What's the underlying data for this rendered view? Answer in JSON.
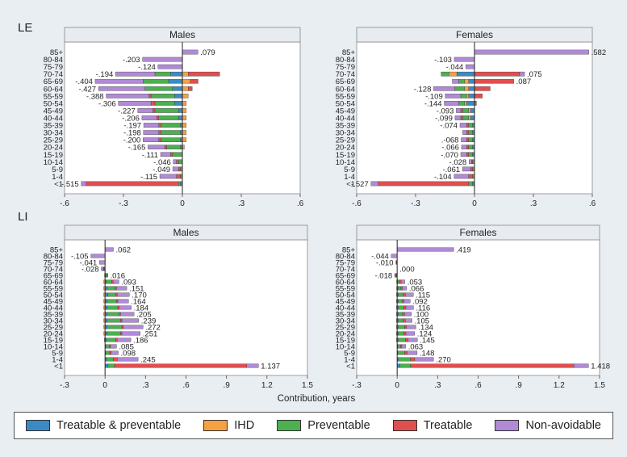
{
  "colors": {
    "treatable_preventable": "#3b8ac4",
    "ihd": "#f5a142",
    "preventable": "#4caf50",
    "treatable": "#e04f4f",
    "non_avoidable": "#b08ad6"
  },
  "panel_labels": {
    "le": "LE",
    "li": "LI"
  },
  "x_axis_title": "Contribution, years",
  "legend": [
    {
      "label": "Treatable & preventable",
      "color": "#3b8ac4"
    },
    {
      "label": "IHD",
      "color": "#f5a142"
    },
    {
      "label": "Preventable",
      "color": "#4caf50"
    },
    {
      "label": "Treatable",
      "color": "#e04f4f"
    },
    {
      "label": "Non-avoidable",
      "color": "#b08ad6"
    }
  ],
  "chart_data": [
    {
      "type": "bar",
      "panel": "LE",
      "title": "Males",
      "categories": [
        "85+",
        "80-84",
        "75-79",
        "70-74",
        "65-69",
        "60-64",
        "55-59",
        "50-54",
        "45-49",
        "40-44",
        "35-39",
        "30-34",
        "25-29",
        "20-24",
        "15-19",
        "10-14",
        "5-9",
        "1-4",
        "<1"
      ],
      "totals": [
        0.079,
        -0.203,
        -0.124,
        -0.194,
        -0.404,
        -0.427,
        -0.388,
        -0.306,
        -0.227,
        -0.206,
        -0.197,
        -0.198,
        -0.2,
        -0.165,
        -0.111,
        -0.046,
        -0.049,
        -0.115,
        -0.515
      ],
      "total_labels": [
        ".079",
        "-.203",
        "-.124",
        "-.194",
        "-.404",
        "-.427",
        "-.388",
        "-.306",
        "-.227",
        "-.206",
        "-.197",
        "-.198",
        "-.200",
        "-.165",
        "-.111",
        "-.046",
        "-.049",
        "-.115",
        "-.515"
      ],
      "series": [
        {
          "name": "Treatable & preventable",
          "values": [
            0,
            0,
            0,
            -0.06,
            -0.07,
            -0.05,
            -0.04,
            -0.04,
            -0.02,
            -0.02,
            -0.01,
            -0.01,
            -0.01,
            -0.01,
            0,
            0,
            0,
            0,
            -0.01
          ]
        },
        {
          "name": "IHD",
          "values": [
            0,
            0,
            0,
            0.03,
            0.04,
            0.03,
            0.03,
            0.02,
            0.02,
            0.02,
            0.02,
            0.02,
            0.02,
            0.01,
            0,
            0,
            0,
            0,
            0
          ]
        },
        {
          "name": "Preventable",
          "values": [
            0,
            0,
            0,
            -0.08,
            -0.13,
            -0.14,
            -0.12,
            -0.1,
            -0.12,
            -0.1,
            -0.1,
            -0.1,
            -0.1,
            -0.07,
            -0.05,
            -0.02,
            -0.01,
            -0.01,
            -0.01
          ]
        },
        {
          "name": "Treatable",
          "values": [
            0,
            0,
            0,
            0.16,
            0.04,
            0.02,
            -0.01,
            -0.02,
            -0.01,
            -0.01,
            -0.01,
            -0.01,
            -0.01,
            -0.01,
            -0.01,
            -0.01,
            -0.01,
            -0.02,
            -0.47
          ]
        },
        {
          "name": "Non-avoidable",
          "values": [
            0.079,
            -0.203,
            -0.124,
            -0.2,
            -0.244,
            -0.237,
            -0.218,
            -0.166,
            -0.077,
            -0.076,
            -0.077,
            -0.078,
            -0.08,
            -0.085,
            -0.051,
            -0.016,
            -0.029,
            -0.085,
            -0.025
          ]
        }
      ],
      "xlim": [
        -0.6,
        0.6
      ],
      "ticks": [
        -0.6,
        -0.3,
        0,
        0.3,
        0.6
      ],
      "tick_labels": [
        "-.6",
        "-.3",
        "0",
        ".3",
        ".6"
      ]
    },
    {
      "type": "bar",
      "panel": "LE",
      "title": "Females",
      "categories": [
        "85+",
        "80-84",
        "75-79",
        "70-74",
        "65-69",
        "60-64",
        "55-59",
        "50-54",
        "45-49",
        "40-44",
        "35-39",
        "30-34",
        "25-29",
        "20-24",
        "15-19",
        "10-14",
        "5-9",
        "1-4",
        "<1"
      ],
      "totals": [
        0.582,
        -0.103,
        -0.044,
        0.075,
        0.087,
        -0.128,
        -0.109,
        -0.144,
        -0.093,
        -0.099,
        -0.074,
        -0.06,
        -0.068,
        -0.066,
        -0.07,
        -0.028,
        -0.061,
        -0.104,
        -0.527
      ],
      "total_labels": [
        ".582",
        "-.103",
        "-.044",
        ".075",
        ".087",
        "-.128",
        "-.109",
        "-.144",
        "-.093",
        "-.099",
        "-.074",
        "",
        ".-068",
        "-.066",
        "-.070",
        "-.028",
        "-.061",
        "-.104",
        "-.527"
      ],
      "series": [
        {
          "name": "Treatable & preventable",
          "values": [
            0,
            0,
            0,
            -0.09,
            -0.03,
            -0.03,
            -0.03,
            -0.04,
            -0.02,
            -0.02,
            -0.01,
            -0.01,
            -0.01,
            -0.01,
            -0.01,
            0,
            0,
            0,
            -0.01
          ]
        },
        {
          "name": "IHD",
          "values": [
            0,
            0,
            0,
            -0.04,
            -0.02,
            -0.02,
            -0.01,
            -0.01,
            -0.01,
            -0.01,
            0,
            0,
            0,
            0,
            0,
            0,
            0,
            0,
            0
          ]
        },
        {
          "name": "Preventable",
          "values": [
            0,
            0,
            0,
            -0.04,
            -0.03,
            -0.05,
            -0.03,
            -0.03,
            -0.03,
            -0.03,
            -0.02,
            -0.02,
            -0.02,
            -0.02,
            -0.02,
            -0.01,
            -0.01,
            -0.01,
            -0.02
          ]
        },
        {
          "name": "Treatable",
          "values": [
            0,
            0,
            0,
            0.23,
            0.2,
            0.08,
            0.04,
            0.01,
            -0.01,
            -0.01,
            -0.01,
            -0.01,
            -0.01,
            -0.01,
            -0.01,
            -0.005,
            -0.01,
            -0.02,
            -0.46
          ]
        },
        {
          "name": "Non-avoidable",
          "values": [
            0.582,
            -0.103,
            -0.044,
            0.025,
            -0.033,
            -0.108,
            -0.079,
            -0.074,
            -0.023,
            -0.029,
            -0.034,
            -0.02,
            -0.028,
            -0.026,
            -0.03,
            -0.013,
            -0.041,
            -0.074,
            -0.037
          ]
        }
      ],
      "xlim": [
        -0.6,
        0.6
      ],
      "ticks": [
        -0.6,
        -0.3,
        0,
        0.3,
        0.6
      ],
      "tick_labels": [
        "-.6",
        "-.3",
        "0",
        ".3",
        ".6"
      ]
    },
    {
      "type": "bar",
      "panel": "LI",
      "title": "Males",
      "categories": [
        "85+",
        "80-84",
        "75-79",
        "70-74",
        "65-69",
        "60-64",
        "55-59",
        "50-54",
        "45-49",
        "40-44",
        "35-39",
        "30-34",
        "25-29",
        "20-24",
        "15-19",
        "10-14",
        "5-9",
        "1-4",
        "<1"
      ],
      "totals": [
        0.062,
        -0.105,
        -0.041,
        -0.028,
        0.016,
        0.093,
        0.151,
        0.17,
        0.164,
        0.184,
        0.205,
        0.239,
        0.272,
        0.251,
        0.186,
        0.085,
        0.098,
        0.245,
        1.137
      ],
      "total_labels": [
        ".062",
        "-.105",
        "-.041",
        "-.028",
        ".016",
        ".093",
        ".151",
        ".170",
        ".164",
        ".184",
        ".205",
        ".239",
        ".272",
        ".251",
        ".186",
        ".085",
        ".098",
        ".245",
        "1.137"
      ],
      "series": [
        {
          "name": "Treatable & preventable",
          "values": [
            0,
            0,
            0,
            -0.005,
            0.004,
            0.01,
            0.015,
            0.02,
            0.015,
            0.015,
            0.015,
            0.015,
            0.015,
            0.015,
            0.01,
            0.005,
            0.005,
            0.01,
            0.02
          ]
        },
        {
          "name": "IHD",
          "values": [
            0,
            0,
            0,
            -0.004,
            -0.004,
            -0.01,
            -0.01,
            -0.01,
            -0.01,
            -0.01,
            -0.01,
            -0.01,
            -0.01,
            -0.01,
            -0.005,
            0,
            0,
            0,
            0
          ]
        },
        {
          "name": "Preventable",
          "values": [
            0,
            0,
            0,
            0,
            0.01,
            0.04,
            0.06,
            0.06,
            0.07,
            0.08,
            0.09,
            0.1,
            0.11,
            0.1,
            0.07,
            0.03,
            0.03,
            0.05,
            0.05
          ]
        },
        {
          "name": "Treatable",
          "values": [
            0,
            0,
            0,
            -0.004,
            0.003,
            0.01,
            0.01,
            0.01,
            0.01,
            0.01,
            0.01,
            0.01,
            0.01,
            0.01,
            0.01,
            0.005,
            0.01,
            0.03,
            0.98
          ]
        },
        {
          "name": "Non-avoidable",
          "values": [
            0.062,
            -0.105,
            -0.041,
            -0.015,
            0.003,
            0.043,
            0.076,
            0.09,
            0.079,
            0.089,
            0.1,
            0.124,
            0.147,
            0.136,
            0.101,
            0.045,
            0.053,
            0.155,
            0.087
          ]
        }
      ],
      "xlim": [
        -0.3,
        1.5
      ],
      "ticks": [
        -0.3,
        0,
        0.3,
        0.6,
        0.9,
        1.2,
        1.5
      ],
      "tick_labels": [
        "-.3",
        "0",
        ".3",
        ".6",
        ".9",
        "1.2",
        "1.5"
      ]
    },
    {
      "type": "bar",
      "panel": "LI",
      "title": "Females",
      "categories": [
        "85+",
        "80-84",
        "75-79",
        "70-74",
        "65-69",
        "60-64",
        "55-59",
        "50-54",
        "45-49",
        "40-44",
        "35-39",
        "30-34",
        "25-29",
        "20-24",
        "15-19",
        "10-14",
        "5-9",
        "1-4",
        "<1"
      ],
      "totals": [
        0.419,
        -0.044,
        -0.01,
        0.0,
        -0.018,
        0.053,
        0.066,
        0.115,
        0.092,
        0.116,
        0.1,
        0.105,
        0.134,
        0.124,
        0.145,
        0.063,
        0.148,
        0.27,
        1.418
      ],
      "total_labels": [
        ".419",
        "-.044",
        "-.010",
        ".000",
        "-.018",
        ".053",
        ".066",
        ".115",
        ".092",
        ".116",
        ".100",
        ".105",
        ".134",
        ".124",
        ".145",
        ".063",
        ".148",
        ".270",
        "1.418"
      ],
      "series": [
        {
          "name": "Treatable & preventable",
          "values": [
            0,
            0,
            0,
            0,
            -0.003,
            0.005,
            0.008,
            0.01,
            0.01,
            0.01,
            0.01,
            0.01,
            0.01,
            0.01,
            0.01,
            0.005,
            0.005,
            0.01,
            0.02
          ]
        },
        {
          "name": "IHD",
          "values": [
            0,
            0,
            0,
            0,
            -0.003,
            -0.004,
            -0.004,
            -0.005,
            -0.005,
            -0.005,
            -0.005,
            -0.005,
            -0.005,
            -0.005,
            -0.005,
            0,
            0,
            0,
            0
          ]
        },
        {
          "name": "Preventable",
          "values": [
            0,
            0,
            0,
            0,
            0,
            0.015,
            0.02,
            0.035,
            0.03,
            0.04,
            0.03,
            0.035,
            0.045,
            0.04,
            0.05,
            0.02,
            0.05,
            0.09,
            0.08
          ]
        },
        {
          "name": "Treatable",
          "values": [
            0,
            0,
            -0.005,
            0,
            -0.01,
            0.01,
            0.01,
            0.015,
            0.01,
            0.015,
            0.015,
            0.015,
            0.015,
            0.015,
            0.02,
            0.01,
            0.02,
            0.03,
            1.21
          ]
        },
        {
          "name": "Non-avoidable",
          "values": [
            0.419,
            -0.044,
            -0.005,
            0,
            -0.002,
            0.027,
            0.032,
            0.06,
            0.047,
            0.056,
            0.05,
            0.05,
            0.069,
            0.064,
            0.07,
            0.028,
            0.073,
            0.14,
            0.108
          ]
        }
      ],
      "xlim": [
        -0.3,
        1.5
      ],
      "ticks": [
        -0.3,
        0,
        0.3,
        0.6,
        0.9,
        1.2,
        1.5
      ],
      "tick_labels": [
        "-.3",
        "0",
        ".3",
        ".6",
        ".9",
        "1.2",
        "1.5"
      ]
    }
  ]
}
